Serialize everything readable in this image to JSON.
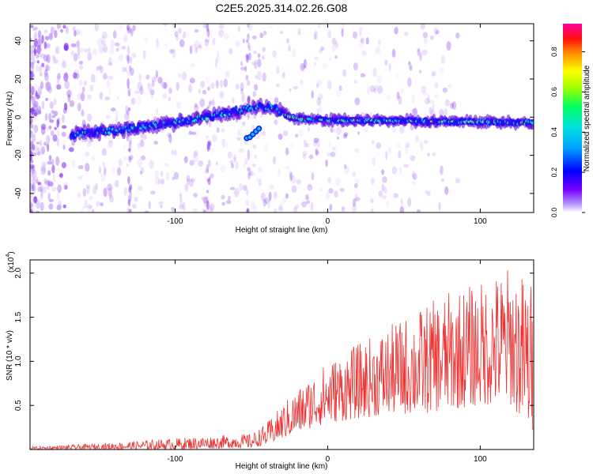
{
  "title": "C2E5.2025.314.02.26.G08",
  "chart_data": [
    {
      "type": "heatmap",
      "title": "C2E5.2025.314.02.26.G08",
      "xlabel": "Height of straight line (km)",
      "ylabel": "Frequency (Hz)",
      "xlim": [
        -195,
        135
      ],
      "ylim": [
        -50,
        49
      ],
      "xticks": [
        -100,
        0,
        100
      ],
      "yticks": [
        -40,
        -20,
        0,
        20,
        40
      ],
      "colorbar": {
        "label": "Normalized spectral amplitude",
        "range": [
          0.0,
          0.94
        ],
        "ticks": [
          0.0,
          0.2,
          0.4,
          0.6,
          0.8
        ],
        "tick_labels": [
          "0.0",
          "0.2",
          "0.4",
          "0.6",
          "0.8"
        ],
        "colors": [
          "#ffffff",
          "#7a00ff",
          "#0000ff",
          "#00c8ff",
          "#00ff80",
          "#80ff00",
          "#ffff00",
          "#ff8000",
          "#ff0000",
          "#ff00a0"
        ]
      },
      "ridge": [
        {
          "x": -165,
          "freq": -9
        },
        {
          "x": -140,
          "freq": -7
        },
        {
          "x": -120,
          "freq": -5
        },
        {
          "x": -100,
          "freq": -3
        },
        {
          "x": -80,
          "freq": 0
        },
        {
          "x": -60,
          "freq": 3
        },
        {
          "x": -45,
          "freq": 6
        },
        {
          "x": -35,
          "freq": 5
        },
        {
          "x": -25,
          "freq": 0
        },
        {
          "x": -15,
          "freq": -1
        },
        {
          "x": 0,
          "freq": -1.5
        },
        {
          "x": 50,
          "freq": -2
        },
        {
          "x": 100,
          "freq": -2.5
        },
        {
          "x": 135,
          "freq": -3
        }
      ]
    },
    {
      "type": "line",
      "xlabel": "Height of straight line (km)",
      "ylabel": "SNR (10 * v/v)",
      "y_multiplier": "(x10",
      "y_exponent": "4",
      "y_multiplier_close": ")",
      "xlim": [
        -195,
        135
      ],
      "ylim": [
        0,
        21500
      ],
      "xticks": [
        -100,
        0,
        100
      ],
      "yticks": [
        5000,
        10000,
        15000,
        20000
      ],
      "ytick_labels": [
        "0.5",
        "1.0",
        "1.5",
        "2.0"
      ],
      "color": "#ee3333",
      "envelope": [
        {
          "x": -195,
          "lo": 0,
          "hi": 300
        },
        {
          "x": -160,
          "lo": 0,
          "hi": 600
        },
        {
          "x": -130,
          "lo": 0,
          "hi": 900
        },
        {
          "x": -100,
          "lo": 0,
          "hi": 1300
        },
        {
          "x": -80,
          "lo": 100,
          "hi": 1500
        },
        {
          "x": -50,
          "lo": 200,
          "hi": 1800
        },
        {
          "x": -40,
          "lo": 500,
          "hi": 3000
        },
        {
          "x": -25,
          "lo": 1500,
          "hi": 6000
        },
        {
          "x": -10,
          "lo": 2500,
          "hi": 8500
        },
        {
          "x": 0,
          "lo": 3000,
          "hi": 10000
        },
        {
          "x": 20,
          "lo": 3500,
          "hi": 12000
        },
        {
          "x": 40,
          "lo": 4000,
          "hi": 14000
        },
        {
          "x": 60,
          "lo": 4000,
          "hi": 16000
        },
        {
          "x": 80,
          "lo": 4500,
          "hi": 18000
        },
        {
          "x": 100,
          "lo": 5000,
          "hi": 19000
        },
        {
          "x": 120,
          "lo": 5000,
          "hi": 21000
        },
        {
          "x": 135,
          "lo": 1500,
          "hi": 19000
        }
      ]
    }
  ]
}
